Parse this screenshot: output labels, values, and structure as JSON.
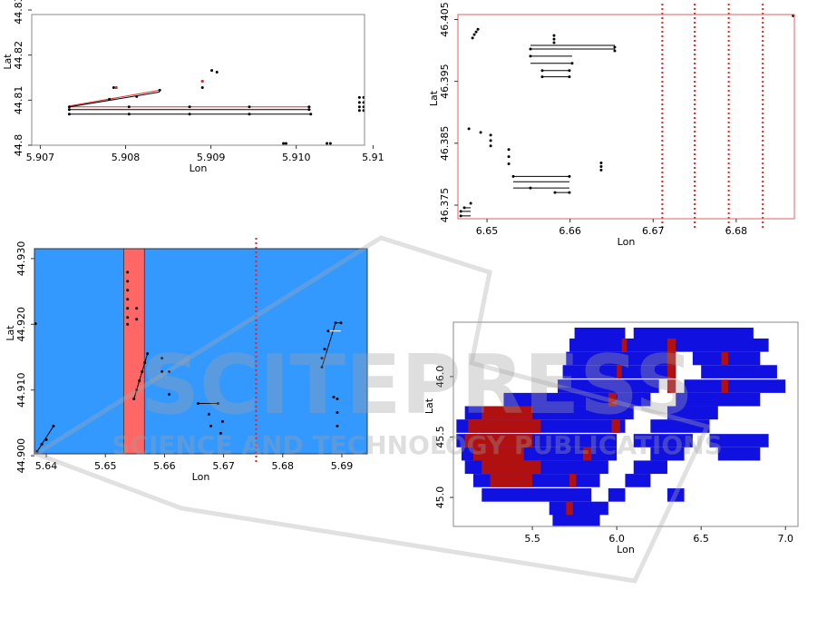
{
  "chart_data": [
    {
      "type": "scatter",
      "xlabel": "Lon",
      "ylabel": "Lat",
      "frame_color": "#888888",
      "xlim": [
        5.9069,
        5.9108
      ],
      "ylim": [
        44.8,
        44.829
      ],
      "xticks": [
        5.907,
        5.908,
        5.909,
        {
          "value": 5.91,
          "label": "5.910"
        },
        {
          "value": 5.9109,
          "label": "5.91"
        }
      ],
      "yticks": [
        44.8,
        44.81,
        44.82,
        44.83
      ],
      "series": [
        {
          "kind": "line",
          "color": "#000000",
          "x": [
            5.90734,
            5.91017
          ],
          "y": [
            44.8079,
            44.8079
          ]
        },
        {
          "kind": "line",
          "color": "#000000",
          "x": [
            5.90734,
            5.91017
          ],
          "y": [
            44.8069,
            44.8069
          ]
        },
        {
          "kind": "line",
          "color": "#e03030",
          "x": [
            5.90734,
            5.91017
          ],
          "y": [
            44.8085,
            44.8085
          ]
        },
        {
          "kind": "line",
          "color": "#e03030",
          "x": [
            5.90734,
            5.9084
          ],
          "y": [
            44.8087,
            44.8122
          ]
        },
        {
          "kind": "line",
          "color": "#000000",
          "x": [
            5.90734,
            5.9084
          ],
          "y": [
            44.8085,
            44.8118
          ]
        },
        {
          "kind": "points",
          "color": "#000000",
          "x": [
            5.90734,
            5.90734,
            5.90734,
            5.90804,
            5.90804,
            5.90875,
            5.90875,
            5.90945,
            5.90945,
            5.91015,
            5.91015,
            5.91017,
            5.90786,
            5.90789,
            5.9089,
            5.9089,
            5.90901,
            5.90907,
            5.90985,
            5.90988,
            5.91036,
            5.9104,
            5.91074,
            5.91074,
            5.91074,
            5.91074,
            5.91079,
            5.91079,
            5.91079,
            5.91079,
            5.90781,
            5.90813,
            5.9084
          ],
          "y": [
            44.8085,
            44.8079,
            44.8069,
            44.8085,
            44.8069,
            44.8085,
            44.8069,
            44.8085,
            44.8069,
            44.8085,
            44.8079,
            44.8069,
            44.8128,
            44.8128,
            44.8142,
            44.8128,
            44.8166,
            44.8162,
            44.8004,
            44.8004,
            44.8004,
            44.8004,
            44.8106,
            44.8095,
            44.8085,
            44.8077,
            44.8106,
            44.8095,
            44.8085,
            44.8077,
            44.8102,
            44.8108,
            44.8122
          ]
        },
        {
          "kind": "points",
          "color": "#e03030",
          "x": [
            5.9089,
            5.90789
          ],
          "y": [
            44.8142,
            44.8128
          ]
        }
      ]
    },
    {
      "type": "scatter",
      "xlabel": "Lon",
      "ylabel": "Lat",
      "frame_color": "#e06060",
      "xlim": [
        6.6465,
        6.687
      ],
      "ylim": [
        46.3728,
        46.4058
      ],
      "xticks": [
        6.65,
        6.66,
        6.67,
        6.68
      ],
      "yticks": [
        46.375,
        46.385,
        46.395,
        46.405
      ],
      "vlines": [
        6.6711,
        6.675,
        6.6791,
        6.6832
      ],
      "vline_color": "#ee2222",
      "series": [
        {
          "kind": "line",
          "color": "#000000",
          "x": [
            6.65523,
            6.66538
          ],
          "y": [
            46.40081,
            46.40081
          ]
        },
        {
          "kind": "line",
          "color": "#000000",
          "x": [
            6.65523,
            6.66538
          ],
          "y": [
            46.40023,
            46.40023
          ]
        },
        {
          "kind": "line",
          "color": "#000000",
          "x": [
            6.65523,
            6.66025
          ],
          "y": [
            46.39907,
            46.39907
          ]
        },
        {
          "kind": "line",
          "color": "#000000",
          "x": [
            6.65523,
            6.66025
          ],
          "y": [
            46.39791,
            46.39791
          ]
        },
        {
          "kind": "line",
          "color": "#000000",
          "x": [
            6.65665,
            6.65992
          ],
          "y": [
            46.39675,
            46.39675
          ]
        },
        {
          "kind": "line",
          "color": "#000000",
          "x": [
            6.65665,
            6.65992
          ],
          "y": [
            46.39574,
            46.39574
          ]
        },
        {
          "kind": "line",
          "color": "#000000",
          "x": [
            6.65316,
            6.65992
          ],
          "y": [
            46.37964,
            46.37964
          ]
        },
        {
          "kind": "line",
          "color": "#000000",
          "x": [
            6.65316,
            6.65992
          ],
          "y": [
            46.37877,
            46.37877
          ]
        },
        {
          "kind": "line",
          "color": "#000000",
          "x": [
            6.65316,
            6.65992
          ],
          "y": [
            46.37776,
            46.37776
          ]
        },
        {
          "kind": "line",
          "color": "#000000",
          "x": [
            6.65818,
            6.65992
          ],
          "y": [
            46.37703,
            46.37703
          ]
        },
        {
          "kind": "line",
          "color": "#000000",
          "x": [
            6.64727,
            6.64804
          ],
          "y": [
            46.37457,
            46.37457
          ]
        },
        {
          "kind": "line",
          "color": "#000000",
          "x": [
            6.64684,
            6.64804
          ],
          "y": [
            46.37399,
            46.37399
          ]
        },
        {
          "kind": "line",
          "color": "#000000",
          "x": [
            6.64684,
            6.64804
          ],
          "y": [
            46.37326,
            46.37326
          ]
        },
        {
          "kind": "points",
          "color": "#000000",
          "x": [
            6.64826,
            6.64847,
            6.64869,
            6.64891,
            6.65807,
            6.65807,
            6.65807,
            6.64782,
            6.64924,
            6.65044,
            6.65044,
            6.65044,
            6.65262,
            6.65262,
            6.65262,
            6.66374,
            6.66374,
            6.66374,
            6.64684,
            6.64684,
            6.64727,
            6.64804,
            6.66538,
            6.66538,
            6.65523,
            6.65523,
            6.66025,
            6.65665,
            6.65992,
            6.65665,
            6.65992,
            6.65316,
            6.65992,
            6.65523,
            6.65818,
            6.65992,
            6.68686
          ],
          "y": [
            46.402,
            46.40256,
            46.403,
            46.40342,
            46.40241,
            46.40183,
            46.40125,
            46.38733,
            46.38675,
            46.38631,
            46.38544,
            46.38457,
            46.38399,
            46.38283,
            46.38167,
            46.38182,
            46.38124,
            46.38066,
            46.37399,
            46.37326,
            46.37457,
            46.37529,
            46.40052,
            46.39994,
            46.40023,
            46.39907,
            46.39791,
            46.39675,
            46.39675,
            46.39574,
            46.39574,
            46.37964,
            46.37964,
            46.37776,
            46.37703,
            46.37703,
            46.4056
          ]
        }
      ]
    },
    {
      "type": "scatter",
      "xlabel": "Lon",
      "ylabel": "Lat",
      "frame_color": "#333333",
      "background": "#3399ff",
      "xlim": [
        5.638,
        5.6943
      ],
      "ylim": [
        44.9003,
        44.9315
      ],
      "xticks": [
        5.64,
        5.65,
        5.66,
        5.67,
        5.68,
        5.69
      ],
      "yticks": [
        {
          "value": 44.9,
          "label": "44.900"
        },
        {
          "value": 44.91,
          "label": "44.910"
        },
        {
          "value": 44.92,
          "label": "44.920"
        },
        {
          "value": 44.93,
          "label": "44.930"
        }
      ],
      "spans": [
        {
          "x0": 5.6531,
          "x1": 5.6566,
          "color": "#ff6666"
        }
      ],
      "vlines": [
        5.6755
      ],
      "vline_color": "#ee2222",
      "series": [
        {
          "kind": "line",
          "color": "#000000",
          "x": [
            5.65483,
            5.65713
          ],
          "y": [
            44.90866,
            44.91554
          ]
        },
        {
          "kind": "line",
          "color": "#000000",
          "x": [
            5.68663,
            5.68893
          ],
          "y": [
            44.91348,
            44.92022
          ]
        },
        {
          "kind": "line",
          "color": "#ffffff",
          "x": [
            5.6877,
            5.68985
          ],
          "y": [
            44.91898,
            44.91898
          ]
        },
        {
          "kind": "line",
          "color": "#000000",
          "x": [
            5.68893,
            5.68985
          ],
          "y": [
            44.92022,
            44.92022
          ]
        },
        {
          "kind": "line",
          "color": "#000000",
          "x": [
            5.66569,
            5.66905
          ],
          "y": [
            44.90797,
            44.90797
          ]
        },
        {
          "kind": "line",
          "color": "#000000",
          "x": [
            5.63847,
            5.64122
          ],
          "y": [
            44.90067,
            44.90452
          ]
        },
        {
          "kind": "points",
          "color": "#000000",
          "x": [
            5.63817,
            5.65376,
            5.65376,
            5.65376,
            5.65376,
            5.65376,
            5.65376,
            5.65376,
            5.65529,
            5.65529,
            5.65483,
            5.65529,
            5.65575,
            5.65621,
            5.65667,
            5.65713,
            5.65957,
            5.65957,
            5.66079,
            5.66079,
            5.66569,
            5.66905,
            5.66752,
            5.66982,
            5.66783,
            5.66951,
            5.63847,
            5.63924,
            5.64,
            5.64122,
            5.68663,
            5.68709,
            5.6877,
            5.68893,
            5.68985,
            5.68663,
            5.68923,
            5.68923,
            5.68923,
            5.68862
          ],
          "y": [
            44.92009,
            44.92793,
            44.92655,
            44.92518,
            44.9238,
            44.92242,
            44.92104,
            44.92,
            44.92243,
            44.92077,
            44.90866,
            44.91003,
            44.91141,
            44.91279,
            44.91416,
            44.91554,
            44.91485,
            44.91279,
            44.91279,
            44.90934,
            44.90797,
            44.90797,
            44.90632,
            44.90521,
            44.90452,
            44.90342,
            44.90067,
            44.90177,
            44.90246,
            44.90452,
            44.91348,
            44.91623,
            44.91898,
            44.92022,
            44.92022,
            44.91485,
            44.90866,
            44.90659,
            44.90452,
            44.90893
          ]
        }
      ]
    },
    {
      "type": "raster",
      "xlabel": "Lon",
      "ylabel": "Lat",
      "frame_color": "#888888",
      "xlim": [
        5.032,
        7.074
      ],
      "ylim": [
        44.76,
        46.45
      ],
      "xticks": [
        5.5,
        {
          "value": 6,
          "label": "6.0"
        },
        6.5,
        {
          "value": 7,
          "label": "7.0"
        }
      ],
      "yticks": [
        {
          "value": 45,
          "label": "45.0"
        },
        45.5,
        {
          "value": 46,
          "label": "46.0"
        }
      ],
      "cell_height": 0.11,
      "series": [
        {
          "kind": "spans",
          "color": "#1010e0",
          "y": [
            46.35,
            46.35,
            46.26,
            46.15,
            46.15,
            46.04,
            46.04,
            45.92,
            45.92,
            45.81,
            45.81,
            45.7,
            45.7,
            45.59,
            45.59,
            45.47,
            45.47,
            45.47,
            45.36,
            45.36,
            45.36,
            45.25,
            45.25,
            45.14,
            45.14,
            45.02,
            45.02,
            45.02,
            44.91,
            44.82
          ],
          "x0": [
            5.75,
            6.1,
            5.72,
            5.7,
            6.45,
            5.68,
            6.5,
            5.65,
            6.4,
            5.33,
            6.35,
            5.1,
            6.3,
            5.05,
            6.2,
            5.05,
            6.1,
            6.55,
            5.08,
            6.2,
            6.6,
            5.1,
            6.1,
            5.15,
            6.05,
            5.2,
            5.95,
            6.3,
            5.6,
            5.62
          ],
          "x1": [
            6.05,
            6.81,
            6.9,
            6.3,
            6.85,
            6.35,
            6.95,
            6.25,
            7.0,
            6.2,
            6.85,
            6.1,
            6.6,
            6.05,
            6.55,
            6.0,
            6.45,
            6.9,
            6.0,
            6.4,
            6.85,
            5.95,
            6.3,
            5.9,
            6.2,
            5.85,
            6.05,
            6.4,
            5.95,
            5.9
          ]
        },
        {
          "kind": "spans",
          "color": "#b01010",
          "y": [
            45.7,
            45.59,
            45.47,
            45.36,
            45.25,
            45.14,
            46.26,
            46.15,
            46.04,
            45.92,
            46.26,
            46.04,
            45.81,
            45.59,
            45.36,
            45.14,
            44.91,
            46.15,
            45.92
          ],
          "x0": [
            5.2,
            5.12,
            5.1,
            5.15,
            5.2,
            5.25,
            6.3,
            6.3,
            6.3,
            6.3,
            6.03,
            6.0,
            5.95,
            5.97,
            5.8,
            5.72,
            5.7,
            6.62,
            6.62
          ],
          "x1": [
            5.5,
            5.55,
            5.5,
            5.45,
            5.55,
            5.5,
            6.35,
            6.35,
            6.35,
            6.35,
            6.06,
            6.03,
            6.0,
            6.02,
            5.85,
            5.76,
            5.74,
            6.66,
            6.66
          ]
        }
      ]
    }
  ],
  "watermark": {
    "title": "SCITEPRESS",
    "subtitle": "SCIENCE AND TECHNOLOGY PUBLICATIONS"
  }
}
